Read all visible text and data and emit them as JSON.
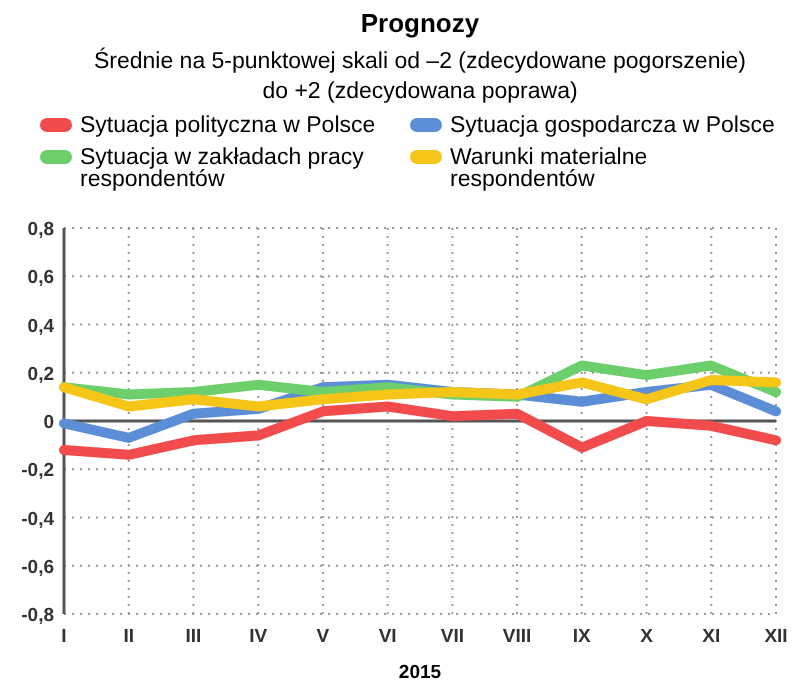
{
  "chart_data": {
    "type": "line",
    "title": "Prognozy",
    "subtitle": "Średnie na 5-punktowej skali od –2 (zdecydowane pogorszenie) do +2 (zdecydowana poprawa)",
    "xlabel": "2015",
    "categories": [
      "I",
      "II",
      "III",
      "IV",
      "V",
      "VI",
      "VII",
      "VIII",
      "IX",
      "X",
      "XI",
      "XII"
    ],
    "series": [
      {
        "name": "Sytuacja polityczna w Polsce",
        "color": "#f24b4b",
        "values": [
          -0.12,
          -0.14,
          -0.08,
          -0.06,
          0.04,
          0.06,
          0.02,
          0.03,
          -0.11,
          0.0,
          -0.02,
          -0.08
        ]
      },
      {
        "name": "Sytuacja gospodarcza w Polsce",
        "color": "#5b8ed6",
        "values": [
          -0.01,
          -0.07,
          0.03,
          0.05,
          0.14,
          0.15,
          0.12,
          0.11,
          0.08,
          0.12,
          0.15,
          0.04
        ]
      },
      {
        "name": "Sytuacja w zakładach pracy respondentów",
        "color": "#6ccf6c",
        "values": [
          0.14,
          0.11,
          0.12,
          0.15,
          0.12,
          0.14,
          0.11,
          0.1,
          0.23,
          0.19,
          0.23,
          0.12
        ]
      },
      {
        "name": "Warunki materialne respondentów",
        "color": "#f5c518",
        "values": [
          0.14,
          0.06,
          0.09,
          0.06,
          0.09,
          0.11,
          0.12,
          0.11,
          0.16,
          0.09,
          0.17,
          0.16
        ]
      }
    ],
    "ylim": [
      -0.8,
      0.8
    ],
    "yticks": [
      {
        "value": -0.8,
        "label": "-0,8"
      },
      {
        "value": -0.6,
        "label": "-0,6"
      },
      {
        "value": -0.4,
        "label": "-0,4"
      },
      {
        "value": -0.2,
        "label": "-0,2"
      },
      0,
      {
        "value": 0.2,
        "label": "0,2"
      },
      {
        "value": 0.4,
        "label": "0,4"
      },
      {
        "value": 0.6,
        "label": "0,6"
      },
      {
        "value": 0.8,
        "label": "0,8"
      }
    ],
    "grid": true,
    "legend": "top",
    "line_style": "solid"
  }
}
